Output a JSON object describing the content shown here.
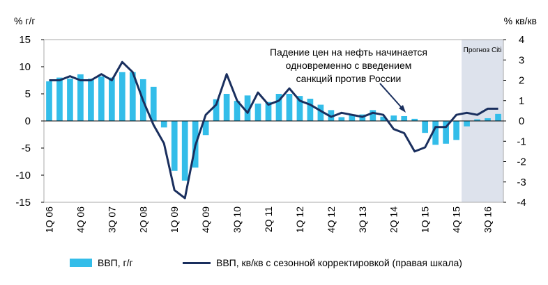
{
  "colors": {
    "bar": "#33bde9",
    "line": "#1a2f5e",
    "forecast_bg": "#dde2ec",
    "grid": "#a8a8a8"
  },
  "chart_data": {
    "type": "bar+line",
    "left_axis_label": "% г/г",
    "right_axis_label": "% кв/кв",
    "left_ylim": [
      -15,
      15
    ],
    "left_ticks": [
      15,
      10,
      5,
      0,
      -5,
      -10,
      -15
    ],
    "right_ylim": [
      -4,
      4
    ],
    "right_ticks": [
      4,
      3,
      2,
      1,
      0,
      -1,
      -2,
      -3,
      -4
    ],
    "categories": [
      "1Q 06",
      "2Q 06",
      "3Q 06",
      "4Q 06",
      "1Q 07",
      "2Q 07",
      "3Q 07",
      "4Q 07",
      "1Q 08",
      "2Q 08",
      "3Q 08",
      "4Q 08",
      "1Q 09",
      "2Q 09",
      "3Q 09",
      "4Q 09",
      "1Q 10",
      "2Q 10",
      "3Q 10",
      "4Q 10",
      "1Q 11",
      "2Q 11",
      "3Q 11",
      "4Q 11",
      "1Q 12",
      "2Q 12",
      "3Q 12",
      "4Q 12",
      "1Q 13",
      "2Q 13",
      "3Q 13",
      "4Q 13",
      "1Q 14",
      "2Q 14",
      "3Q 14",
      "4Q 14",
      "1Q 15",
      "2Q 15",
      "3Q 15",
      "4Q 15",
      "1Q 16",
      "2Q 16",
      "3Q 16",
      "4Q 16"
    ],
    "x_tick_labels": [
      "1Q 06",
      "4Q 06",
      "3Q 07",
      "2Q 08",
      "1Q 09",
      "4Q 09",
      "3Q 10",
      "2Q 11",
      "1Q 12",
      "4Q 12",
      "3Q 13",
      "2Q 14",
      "1Q 15",
      "4Q 15",
      "3Q 16"
    ],
    "forecast_start": "1Q 16",
    "forecast_label": "Прогноз Citi",
    "annotation": "Падение цен на нефть начинается\nодновременно с введением\nсанкций против России",
    "series": [
      {
        "name": "ВВП, г/г",
        "type": "bar",
        "axis": "left",
        "values": [
          7.3,
          8.0,
          7.8,
          8.6,
          7.8,
          8.2,
          8.0,
          9.0,
          9.0,
          7.7,
          6.3,
          -1.2,
          -9.2,
          -11.0,
          -8.6,
          -2.6,
          4.0,
          5.0,
          3.7,
          4.7,
          3.2,
          3.5,
          5.0,
          5.0,
          4.6,
          4.1,
          3.0,
          2.0,
          0.7,
          1.1,
          1.2,
          2.0,
          0.8,
          1.0,
          0.9,
          0.4,
          -2.2,
          -4.4,
          -4.2,
          -3.5,
          -1.0,
          0.3,
          0.5,
          1.3
        ]
      },
      {
        "name": "ВВП, кв/кв с сезонной корректировкой (правая шкала)",
        "type": "line",
        "axis": "right",
        "values": [
          2.0,
          2.0,
          2.2,
          2.0,
          2.0,
          2.3,
          2.0,
          2.9,
          2.4,
          1.0,
          -0.2,
          -1.1,
          -3.4,
          -3.8,
          -1.2,
          0.3,
          0.8,
          2.3,
          1.0,
          0.4,
          1.4,
          0.8,
          1.0,
          1.6,
          1.0,
          0.8,
          0.5,
          0.2,
          0.4,
          0.3,
          0.2,
          0.4,
          0.3,
          -0.4,
          -0.6,
          -1.5,
          -1.3,
          -0.3,
          -0.3,
          0.3,
          0.4,
          0.3,
          0.6,
          0.6
        ]
      }
    ]
  },
  "legend": {
    "bar_label": "ВВП, г/г",
    "line_label": "ВВП, кв/кв с сезонной корректировкой (правая шкала)"
  }
}
